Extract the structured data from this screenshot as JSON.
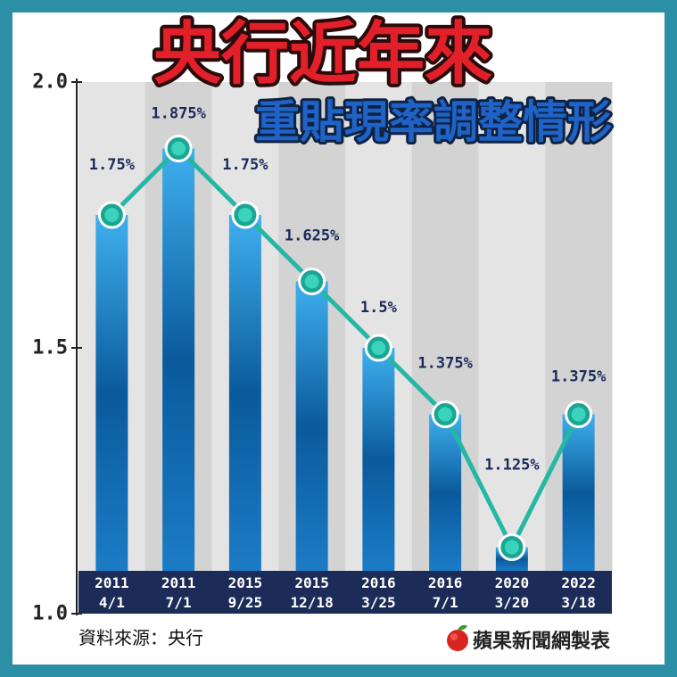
{
  "source": "資料來源：央行",
  "credit": "蘋果新聞網製表",
  "colors": {
    "frame": "#2b8fa5",
    "panel": "#ffffff",
    "title_red": "#e3202a",
    "title_outline": "#2a0a0a",
    "subtitle_blue": "#1f63c6",
    "subtitle_outline": "#0e2244",
    "band_light": "#e4e4e4",
    "band_dark": "#d3d3d3",
    "bar_top": "#3fb0ee",
    "bar_mid": "#0a5a9c",
    "bar_bottom": "#1b7cc6",
    "line_teal": "#25b7a3",
    "marker_teal": "#1aa594",
    "marker_inner": "#3bd3bb",
    "date_band_navy": "#1c2b58",
    "value_label": "#1a2a5a",
    "axis": "#222222",
    "logo_red": "#d8241f",
    "logo_green": "#3a9a2a"
  },
  "chart_data": {
    "type": "bar",
    "title": "央行近年來",
    "subtitle": "重貼現率調整情形",
    "categories": [
      "2011 4/1",
      "2011 7/1",
      "2015 9/25",
      "2015 12/18",
      "2016 3/25",
      "2016 7/1",
      "2020 3/20",
      "2022 3/18"
    ],
    "values": [
      1.75,
      1.875,
      1.75,
      1.625,
      1.5,
      1.375,
      1.125,
      1.375
    ],
    "value_labels": [
      "1.75%",
      "1.875%",
      "1.75%",
      "1.625%",
      "1.5%",
      "1.375%",
      "1.125%",
      "1.375%"
    ],
    "line_overlay": true,
    "xlabel": "",
    "ylabel": "",
    "ylim": [
      1.0,
      2.0
    ],
    "yticks": [
      2.0,
      1.5,
      1.0
    ],
    "ytick_labels": [
      "2.0",
      "1.5",
      "1.0"
    ],
    "grid": false,
    "legend": "none"
  }
}
